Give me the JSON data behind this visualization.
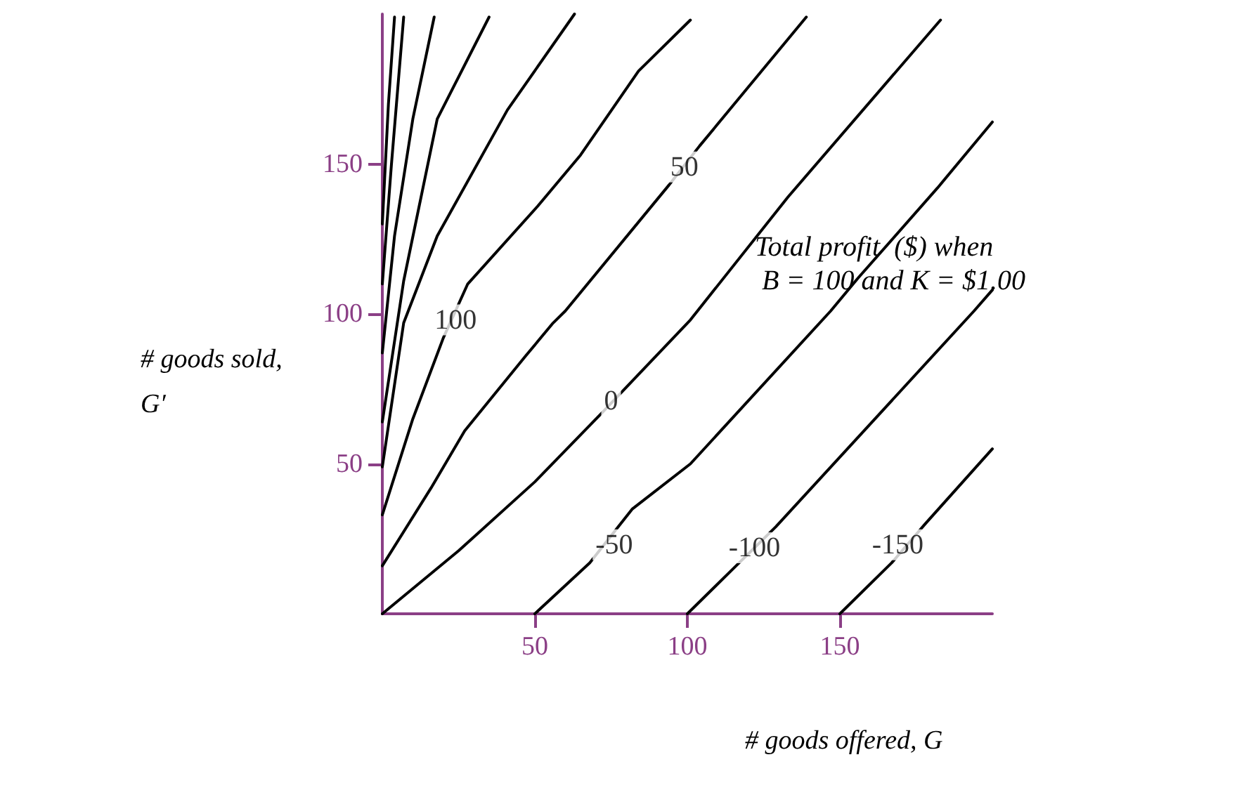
{
  "chart_data": {
    "type": "line",
    "xlabel": "# goods offered, G",
    "ylabel": "# goods sold, G′",
    "xlim": [
      0,
      200
    ],
    "ylim": [
      0,
      200
    ],
    "xticks": [
      50,
      100,
      150
    ],
    "yticks": [
      50,
      100,
      150
    ],
    "marker": "none",
    "series": [
      {
        "color": "#000000",
        "x": [
          0,
          2,
          4
        ],
        "values": [
          130,
          170,
          199
        ]
      },
      {
        "color": "#000000",
        "x": [
          0,
          3,
          7
        ],
        "values": [
          110,
          150,
          199
        ]
      },
      {
        "color": "#000000",
        "x": [
          0,
          4,
          10,
          17
        ],
        "values": [
          87,
          126,
          165,
          199
        ]
      },
      {
        "color": "#000000",
        "x": [
          0,
          7,
          18,
          35
        ],
        "values": [
          64,
          111,
          165,
          199
        ]
      },
      {
        "color": "#000000",
        "x": [
          0,
          7,
          18,
          41,
          63
        ],
        "values": [
          49,
          97,
          126,
          168,
          200
        ]
      },
      {
        "color": "#000000",
        "x": [
          0,
          10,
          20,
          28,
          51,
          65,
          84,
          101
        ],
        "values": [
          33,
          65,
          92,
          110,
          136,
          153,
          181,
          198
        ]
      },
      {
        "color": "#000000",
        "x": [
          0,
          16,
          27,
          47,
          56,
          60,
          94,
          104,
          139
        ],
        "values": [
          16,
          42,
          61,
          86,
          97,
          101,
          143,
          156,
          199
        ]
      },
      {
        "color": "#000000",
        "x": [
          0,
          25,
          50,
          72,
          101,
          133,
          183
        ],
        "values": [
          0,
          21,
          44,
          67,
          98,
          139,
          198
        ]
      },
      {
        "color": "#000000",
        "x": [
          50,
          68,
          82,
          101,
          147,
          156,
          182,
          200
        ],
        "values": [
          0,
          17,
          35,
          50,
          101,
          112,
          142,
          164
        ]
      },
      {
        "color": "#000000",
        "x": [
          100,
          116,
          129,
          194,
          200
        ],
        "values": [
          0,
          16,
          29,
          101,
          108
        ]
      },
      {
        "color": "#000000",
        "x": [
          150,
          167,
          178,
          200
        ],
        "values": [
          0,
          17,
          30,
          55
        ]
      }
    ],
    "annotations": [
      {
        "text": "50",
        "x": 99,
        "y": 149
      },
      {
        "text": "100",
        "x": 24,
        "y": 98
      },
      {
        "text": "0",
        "x": 75,
        "y": 71
      },
      {
        "text": "-50",
        "x": 76,
        "y": 23
      },
      {
        "text": "-100",
        "x": 122,
        "y": 22
      },
      {
        "text": "-150",
        "x": 169,
        "y": 23
      },
      "Total profit  ($) when B = 100 and K = $1.00"
    ]
  }
}
